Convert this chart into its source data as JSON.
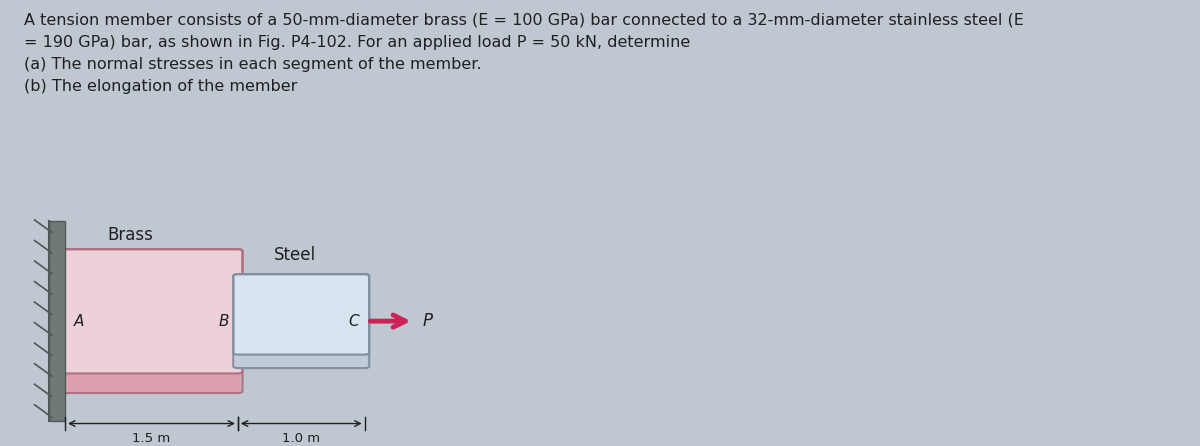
{
  "title_line1": "A tension member consists of a 50-mm-diameter brass (E = 100 GPa) bar connected to a 32-mm-diameter stainless steel (E",
  "title_line2": "= 190 GPa) bar, as shown in Fig. P4-102. For an applied load P = 50 kN, determine",
  "title_line3": "(a) The normal stresses in each segment of the member.",
  "title_line4": "(b) The elongation of the member",
  "bg_color": "#bfc7d1",
  "brass_fill": "#dda0b0",
  "brass_fill_top": "#edd0d8",
  "brass_edge": "#b07080",
  "steel_fill": "#c0ccd8",
  "steel_fill_top": "#d8e4f0",
  "steel_edge": "#8090a0",
  "wall_fill": "#707878",
  "wall_hatch_color": "#505858",
  "brass_label": "Brass",
  "steel_label": "Steel",
  "label_A": "A",
  "label_B": "B",
  "label_C": "C",
  "label_P": "P",
  "dim_brass": "1.5 m",
  "dim_steel": "1.0 m",
  "arrow_color": "#cc2255",
  "text_color": "#202020",
  "title_fontsize": 11.5,
  "label_fontsize": 11,
  "figure_bg": "#bfc7d1"
}
